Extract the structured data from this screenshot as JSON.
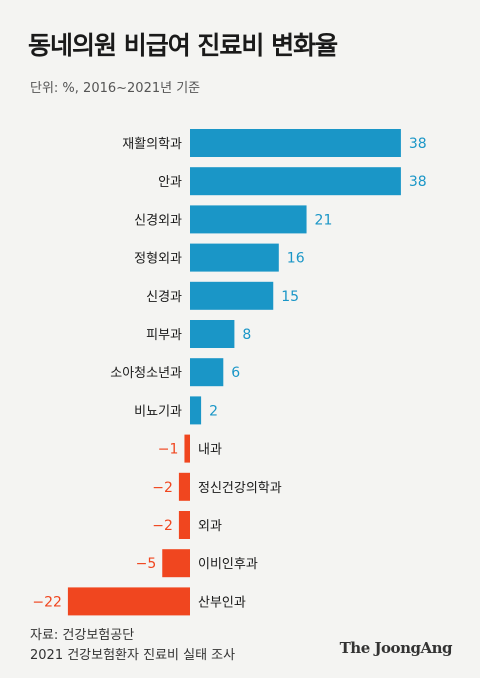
{
  "title": "동네의원 비급여 진료비 변화율",
  "subtitle": "단위: %, 2016~2021년 기준",
  "footer": {
    "source_line1": "자료: 건강보험공단",
    "source_line2": "2021 건강보험환자 진료비 실태 조사",
    "brand": "The JoongAng"
  },
  "colors": {
    "positive": "#1a96c7",
    "negative": "#f0461f",
    "background": "#f4f4f2"
  },
  "chart_data": {
    "type": "bar",
    "orientation": "horizontal",
    "title": "동네의원 비급여 진료비 변화율",
    "subtitle": "단위: %, 2016~2021년 기준",
    "xlabel": "",
    "ylabel": "",
    "xlim": [
      -22,
      38
    ],
    "grid": false,
    "categories": [
      "재활의학과",
      "안과",
      "신경외과",
      "정형외과",
      "신경과",
      "피부과",
      "소아청소년과",
      "비뇨기과",
      "내과",
      "정신건강의학과",
      "외과",
      "이비인후과",
      "산부인과"
    ],
    "values": [
      38,
      38,
      21,
      16,
      15,
      8,
      6,
      2,
      -1,
      -2,
      -2,
      -5,
      -22
    ],
    "value_labels": [
      "38",
      "38",
      "21",
      "16",
      "15",
      "8",
      "6",
      "2",
      "−1",
      "−2",
      "−2",
      "−5",
      "−22"
    ]
  }
}
